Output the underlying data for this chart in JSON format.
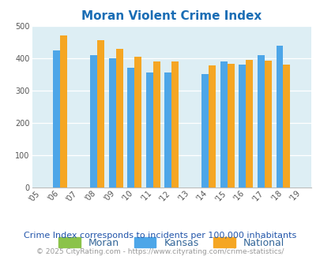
{
  "title": "Moran Violent Crime Index",
  "all_years": [
    2005,
    2006,
    2007,
    2008,
    2009,
    2010,
    2011,
    2012,
    2013,
    2014,
    2015,
    2016,
    2017,
    2018,
    2019
  ],
  "bar_years": [
    2006,
    2008,
    2009,
    2010,
    2011,
    2012,
    2014,
    2015,
    2016,
    2017,
    2018
  ],
  "moran": [
    0,
    0,
    0,
    0,
    0,
    0,
    0,
    0,
    0,
    0,
    0
  ],
  "kansas": [
    425,
    410,
    400,
    370,
    355,
    355,
    350,
    390,
    380,
    410,
    440
  ],
  "national": [
    470,
    455,
    430,
    405,
    390,
    390,
    378,
    383,
    395,
    393,
    380
  ],
  "bar_color_moran": "#8bc34a",
  "bar_color_kansas": "#4da6e8",
  "bar_color_national": "#f5a623",
  "bg_color": "#ddeef4",
  "ylim": [
    0,
    500
  ],
  "yticks": [
    0,
    100,
    200,
    300,
    400,
    500
  ],
  "subtitle": "Crime Index corresponds to incidents per 100,000 inhabitants",
  "footer": "© 2025 CityRating.com - https://www.cityrating.com/crime-statistics/",
  "title_color": "#1a6db5",
  "subtitle_color": "#2255aa",
  "footer_color": "#999999",
  "bar_width": 0.38
}
